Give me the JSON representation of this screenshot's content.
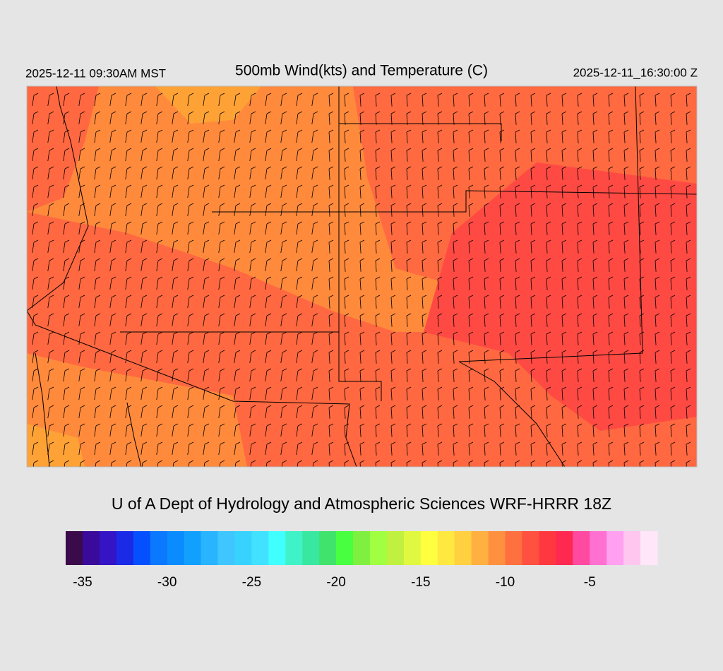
{
  "header": {
    "local_time": "2025-12-11 09:30AM MST",
    "title": "500mb Wind(kts) and Temperature (C)",
    "valid_time": "2025-12-11_16:30:00 Z"
  },
  "credit": "U of A Dept of Hydrology and Atmospheric Sciences WRF-HRRR 18Z",
  "colorbar": {
    "range": [
      -36,
      -1
    ],
    "colors": [
      "#3a0a4a",
      "#3a0a9a",
      "#3414c4",
      "#1a2ae6",
      "#0450ff",
      "#0a78ff",
      "#0a8cff",
      "#12a0ff",
      "#28b4ff",
      "#40c6ff",
      "#38d2ff",
      "#40e2ff",
      "#40ffff",
      "#40f2c8",
      "#38e8a0",
      "#40e46c",
      "#48ff40",
      "#80f040",
      "#a0ff40",
      "#c0f040",
      "#e0f840",
      "#ffff40",
      "#ffe840",
      "#ffd040",
      "#ffb040",
      "#ff9040",
      "#ff7040",
      "#ff5040",
      "#ff3840",
      "#ff2850",
      "#ff4aa0",
      "#ff70d0",
      "#ffa0f0",
      "#ffc6f0",
      "#ffe6f8"
    ],
    "ticks": [
      -35,
      -30,
      -25,
      -20,
      -15,
      -10,
      -5
    ]
  }
}
